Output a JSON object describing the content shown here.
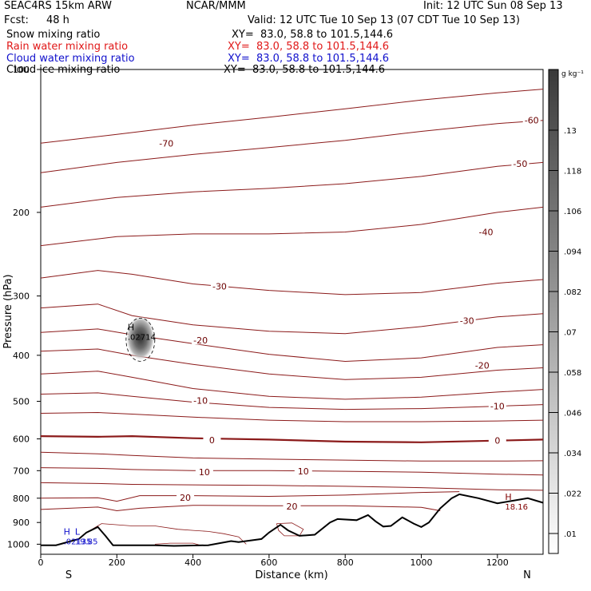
{
  "header": {
    "model": "SEAC4RS 15km ARW",
    "center": "NCAR/MMM",
    "init": "Init: 12 UTC Sun 08 Sep 13",
    "fcst_label": "Fcst:",
    "fcst_value": "48 h",
    "valid": "Valid: 12 UTC Tue 10 Sep 13 (07 CDT Tue 10 Sep 13)"
  },
  "fields": [
    {
      "name": "Snow mixing ratio",
      "xy": "XY=  83.0, 58.8 to 101.5,144.6",
      "color": "#000000"
    },
    {
      "name": "Rain water mixing ratio",
      "xy": "XY=  83.0, 58.8 to 101.5,144.6",
      "color": "#e01818"
    },
    {
      "name": "Cloud water mixing ratio",
      "xy": "XY=  83.0, 58.8 to 101.5,144.6",
      "color": "#1010cc"
    },
    {
      "name": "Cloud ice mixing ratio",
      "xy": "XY=  83.0, 58.8 to 101.5,144.6",
      "color": "#000000"
    }
  ],
  "chart_data": {
    "type": "cross-section contour",
    "xlabel": "Distance (km)",
    "ylabel": "Pressure (hPa)",
    "xlim": [
      0,
      1320
    ],
    "ylim": [
      1050,
      100
    ],
    "y_scale": "log",
    "x_ticks": [
      0,
      200,
      400,
      600,
      800,
      1000,
      1200
    ],
    "y_ticks": [
      100,
      200,
      300,
      400,
      500,
      600,
      700,
      800,
      900,
      1000
    ],
    "x_end_labels": {
      "left": "S",
      "right": "N"
    },
    "colorbar": {
      "unit": "g kg⁻¹",
      "ticks": [
        ".13",
        ".118",
        ".106",
        ".094",
        ".082",
        ".07",
        ".058",
        ".046",
        ".034",
        ".022",
        ".01"
      ]
    },
    "temperature_isotherms_C": [
      {
        "value": -70,
        "points": [
          [
            0,
            143
          ],
          [
            200,
            137
          ],
          [
            400,
            131
          ],
          [
            600,
            126
          ],
          [
            800,
            121
          ],
          [
            1000,
            116
          ],
          [
            1200,
            112
          ],
          [
            1320,
            110
          ]
        ]
      },
      {
        "value": -60,
        "points": [
          [
            0,
            165
          ],
          [
            200,
            157
          ],
          [
            400,
            151
          ],
          [
            600,
            146
          ],
          [
            800,
            141
          ],
          [
            1000,
            135
          ],
          [
            1200,
            130
          ],
          [
            1320,
            128
          ]
        ]
      },
      {
        "value": -50,
        "points": [
          [
            0,
            195
          ],
          [
            200,
            186
          ],
          [
            400,
            181
          ],
          [
            600,
            178
          ],
          [
            800,
            174
          ],
          [
            1000,
            168
          ],
          [
            1200,
            160
          ],
          [
            1320,
            157
          ]
        ]
      },
      {
        "value": -40,
        "points": [
          [
            0,
            235
          ],
          [
            200,
            225
          ],
          [
            400,
            222
          ],
          [
            600,
            222
          ],
          [
            800,
            220
          ],
          [
            1000,
            212
          ],
          [
            1200,
            200
          ],
          [
            1320,
            195
          ]
        ]
      },
      {
        "value": -30,
        "points": [
          [
            0,
            275
          ],
          [
            150,
            265
          ],
          [
            240,
            270
          ],
          [
            400,
            283
          ],
          [
            600,
            292
          ],
          [
            800,
            298
          ],
          [
            1000,
            295
          ],
          [
            1200,
            282
          ],
          [
            1320,
            277
          ]
        ]
      },
      {
        "value": -30,
        "points": [
          [
            0,
            318
          ],
          [
            150,
            312
          ],
          [
            240,
            330
          ],
          [
            400,
            345
          ],
          [
            600,
            356
          ],
          [
            800,
            360
          ],
          [
            1000,
            348
          ],
          [
            1200,
            332
          ],
          [
            1320,
            327
          ]
        ]
      },
      {
        "value": -20,
        "points": [
          [
            0,
            358
          ],
          [
            150,
            352
          ],
          [
            240,
            362
          ],
          [
            400,
            378
          ],
          [
            600,
            398
          ],
          [
            800,
            412
          ],
          [
            1000,
            405
          ],
          [
            1200,
            385
          ],
          [
            1320,
            380
          ]
        ]
      },
      {
        "value": -20,
        "points": [
          [
            0,
            392
          ],
          [
            150,
            388
          ],
          [
            240,
            400
          ],
          [
            400,
            418
          ],
          [
            600,
            438
          ],
          [
            800,
            450
          ],
          [
            1000,
            445
          ],
          [
            1200,
            430
          ],
          [
            1320,
            425
          ]
        ]
      },
      {
        "value": -10,
        "points": [
          [
            0,
            438
          ],
          [
            150,
            432
          ],
          [
            240,
            445
          ],
          [
            400,
            470
          ],
          [
            600,
            488
          ],
          [
            800,
            495
          ],
          [
            1000,
            490
          ],
          [
            1200,
            478
          ],
          [
            1320,
            472
          ]
        ]
      },
      {
        "value": -10,
        "points": [
          [
            0,
            483
          ],
          [
            150,
            480
          ],
          [
            240,
            488
          ],
          [
            400,
            502
          ],
          [
            600,
            515
          ],
          [
            800,
            520
          ],
          [
            1000,
            518
          ],
          [
            1200,
            512
          ],
          [
            1320,
            508
          ]
        ]
      },
      {
        "value": -10,
        "points": [
          [
            0,
            530
          ],
          [
            150,
            528
          ],
          [
            240,
            532
          ],
          [
            400,
            540
          ],
          [
            600,
            548
          ],
          [
            800,
            552
          ],
          [
            1000,
            552
          ],
          [
            1200,
            550
          ],
          [
            1320,
            548
          ]
        ]
      },
      {
        "value": 0,
        "points": [
          [
            0,
            592
          ],
          [
            150,
            594
          ],
          [
            240,
            592
          ],
          [
            400,
            598
          ],
          [
            600,
            602
          ],
          [
            800,
            608
          ],
          [
            1000,
            610
          ],
          [
            1200,
            605
          ],
          [
            1320,
            602
          ]
        ]
      },
      {
        "value": 10,
        "points": [
          [
            0,
            640
          ],
          [
            150,
            645
          ],
          [
            240,
            650
          ],
          [
            400,
            658
          ],
          [
            600,
            662
          ],
          [
            800,
            665
          ],
          [
            1000,
            668
          ],
          [
            1200,
            668
          ],
          [
            1320,
            667
          ]
        ]
      },
      {
        "value": 10,
        "points": [
          [
            0,
            690
          ],
          [
            150,
            692
          ],
          [
            240,
            696
          ],
          [
            400,
            700
          ],
          [
            600,
            700
          ],
          [
            800,
            702
          ],
          [
            1000,
            705
          ],
          [
            1200,
            712
          ],
          [
            1320,
            715
          ]
        ]
      },
      {
        "value": 10,
        "points": [
          [
            0,
            742
          ],
          [
            150,
            745
          ],
          [
            240,
            748
          ],
          [
            400,
            750
          ],
          [
            600,
            752
          ],
          [
            800,
            755
          ],
          [
            1000,
            760
          ],
          [
            1200,
            768
          ],
          [
            1320,
            770
          ]
        ]
      },
      {
        "value": 20,
        "points": [
          [
            0,
            800
          ],
          [
            150,
            798
          ],
          [
            200,
            812
          ],
          [
            260,
            790
          ],
          [
            400,
            790
          ],
          [
            600,
            793
          ],
          [
            800,
            788
          ],
          [
            1000,
            778
          ],
          [
            1100,
            775
          ]
        ]
      },
      {
        "value": 20,
        "points": [
          [
            0,
            845
          ],
          [
            150,
            835
          ],
          [
            200,
            850
          ],
          [
            260,
            840
          ],
          [
            400,
            828
          ],
          [
            600,
            830
          ],
          [
            800,
            830
          ],
          [
            1000,
            836
          ],
          [
            1050,
            850
          ]
        ]
      }
    ],
    "isotherm_labels": [
      {
        "text": "-70",
        "x": 330,
        "p": 143
      },
      {
        "text": "-60",
        "x": 1290,
        "p": 128
      },
      {
        "text": "-50",
        "x": 1260,
        "p": 158
      },
      {
        "text": "-40",
        "x": 1170,
        "p": 220
      },
      {
        "text": "-30",
        "x": 470,
        "p": 286
      },
      {
        "text": "-30",
        "x": 1120,
        "p": 338
      },
      {
        "text": "-20",
        "x": 420,
        "p": 372
      },
      {
        "text": "-20",
        "x": 1160,
        "p": 420
      },
      {
        "text": "-10",
        "x": 420,
        "p": 498
      },
      {
        "text": "-10",
        "x": 1200,
        "p": 512
      },
      {
        "text": "0",
        "x": 450,
        "p": 603
      },
      {
        "text": "0",
        "x": 1200,
        "p": 605
      },
      {
        "text": "10",
        "x": 430,
        "p": 705
      },
      {
        "text": "10",
        "x": 690,
        "p": 702
      },
      {
        "text": "20",
        "x": 380,
        "p": 798
      },
      {
        "text": "20",
        "x": 660,
        "p": 832
      }
    ],
    "terrain_surface_hPa": [
      [
        0,
        1005
      ],
      [
        40,
        1005
      ],
      [
        60,
        995
      ],
      [
        100,
        975
      ],
      [
        120,
        945
      ],
      [
        150,
        920
      ],
      [
        170,
        960
      ],
      [
        190,
        1005
      ],
      [
        300,
        1005
      ],
      [
        350,
        1008
      ],
      [
        440,
        1005
      ],
      [
        500,
        985
      ],
      [
        520,
        990
      ],
      [
        580,
        975
      ],
      [
        600,
        945
      ],
      [
        630,
        910
      ],
      [
        650,
        935
      ],
      [
        680,
        960
      ],
      [
        720,
        955
      ],
      [
        760,
        900
      ],
      [
        780,
        885
      ],
      [
        830,
        890
      ],
      [
        860,
        868
      ],
      [
        880,
        895
      ],
      [
        900,
        918
      ],
      [
        920,
        915
      ],
      [
        950,
        878
      ],
      [
        980,
        905
      ],
      [
        1000,
        920
      ],
      [
        1020,
        900
      ],
      [
        1050,
        840
      ],
      [
        1080,
        800
      ],
      [
        1100,
        785
      ],
      [
        1150,
        800
      ],
      [
        1200,
        820
      ],
      [
        1240,
        810
      ],
      [
        1280,
        800
      ],
      [
        1320,
        818
      ]
    ],
    "cloud_max": {
      "label": "H",
      "value": ".02714",
      "x": 262,
      "p": 368
    },
    "extrema_labels": [
      {
        "label": "H",
        "value": "18.16",
        "x": 1220,
        "p": 820,
        "color": "#800000"
      },
      {
        "label": "H",
        "value": ".02135",
        "x": 60,
        "p": 970,
        "color": "#1010cc"
      },
      {
        "label": "L",
        "value": "19.85",
        "x": 90,
        "p": 970,
        "color": "#1010cc"
      }
    ]
  }
}
